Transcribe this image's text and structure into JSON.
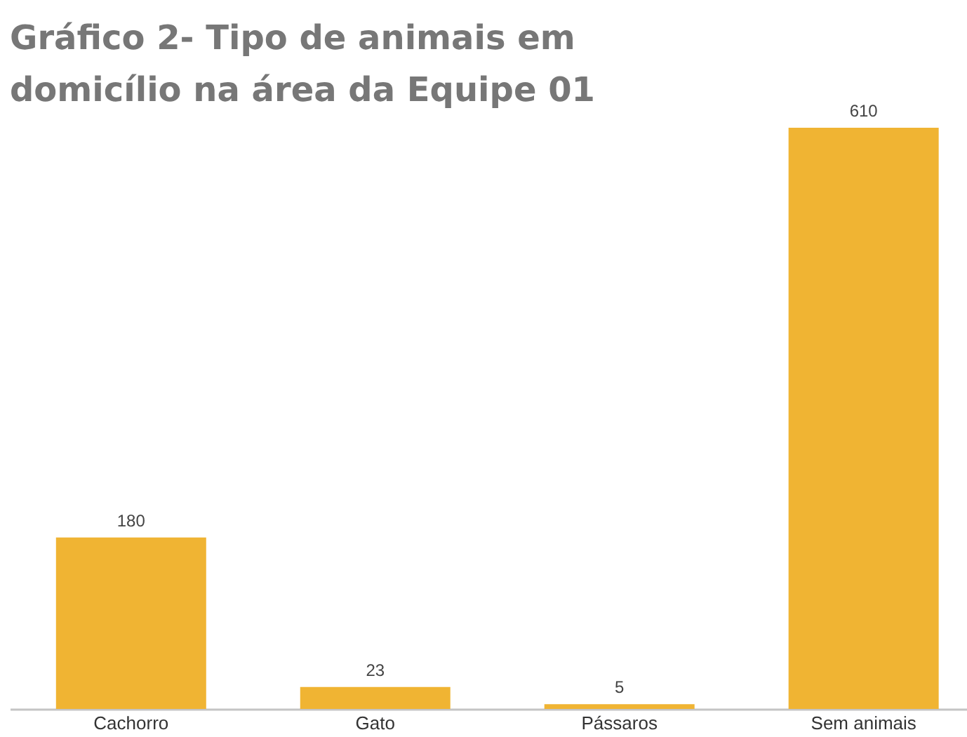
{
  "chart_data": {
    "type": "bar",
    "title": "Gráfico 2- Tipo de animais em domicílio na área da Equipe 01",
    "categories": [
      "Cachorro",
      "Gato",
      "Pássaros",
      "Sem animais"
    ],
    "values": [
      180,
      23,
      5,
      610
    ],
    "color": "#f0b433",
    "data_labels": true
  }
}
